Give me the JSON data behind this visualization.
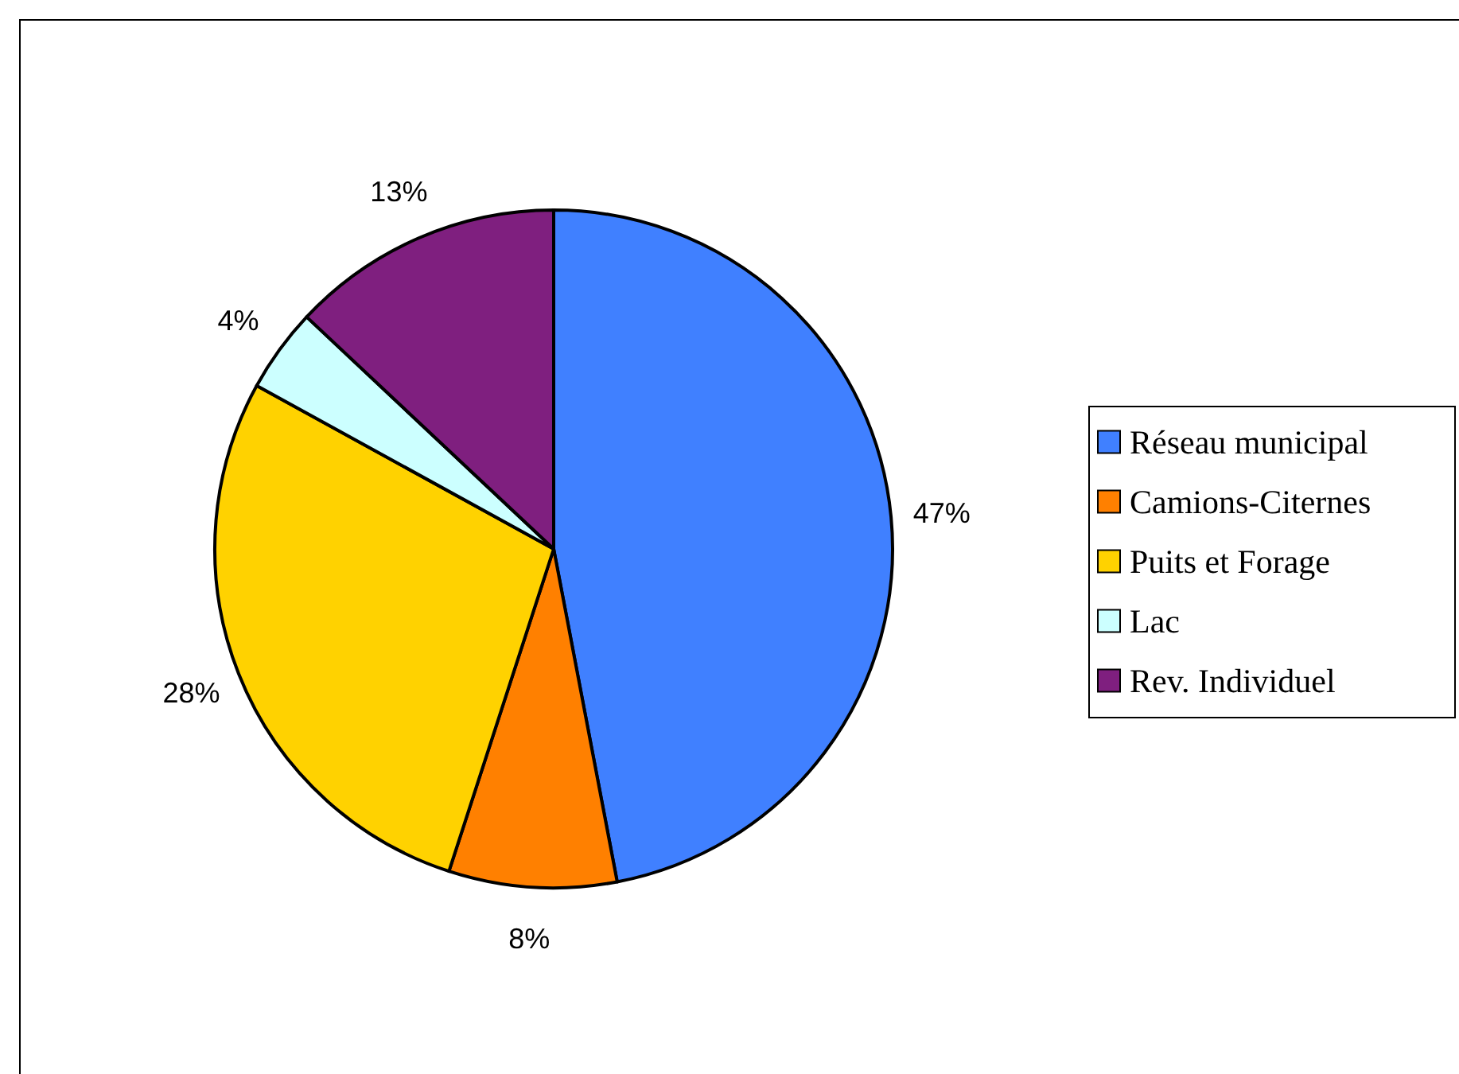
{
  "chart_data": {
    "type": "pie",
    "categories": [
      "Réseau municipal",
      "Camions-Citernes",
      "Puits et Forage",
      "Lac",
      "Rev. Individuel"
    ],
    "values": [
      47,
      8,
      28,
      4,
      13
    ],
    "value_labels": [
      "47%",
      "8%",
      "28%",
      "4%",
      "13%"
    ],
    "colors": [
      "#4080ff",
      "#ff8000",
      "#ffd200",
      "#ccffff",
      "#7f1f7f"
    ],
    "legend": "right"
  }
}
